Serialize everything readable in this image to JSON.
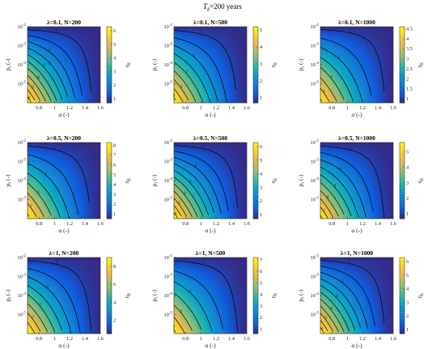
{
  "figure": {
    "title": "T_k=200 years",
    "title_main": "T",
    "title_sub": "k",
    "title_rest": "=200 years"
  },
  "chart_data": [
    {
      "type": "heatmap",
      "title": "λ=0.1, N=200",
      "xlabel": "α (-)",
      "ylabel": "p_f (-)",
      "colorbar_label": "η_E",
      "xlim": [
        0.65,
        1.6
      ],
      "ylim": [
        -6,
        -2
      ],
      "y_scale": "log",
      "xticks": [
        0.8,
        1,
        1.2,
        1.4,
        1.6
      ],
      "yticks": [
        "10^-5",
        "10^-4",
        "10^-3",
        "10^-2"
      ],
      "colorbar_ticks": [
        1,
        2,
        3,
        4,
        5,
        6
      ],
      "clim": [
        0.7,
        6.3
      ],
      "contour_levels": [
        1,
        1.5,
        2,
        2.5,
        3,
        3.5,
        4,
        4.5,
        5,
        5.5,
        6
      ]
    },
    {
      "type": "heatmap",
      "title": "λ=0.1, N=500",
      "xlabel": "α (-)",
      "ylabel": "p_f (-)",
      "colorbar_label": "η_E",
      "xlim": [
        0.65,
        1.6
      ],
      "ylim": [
        -6,
        -2
      ],
      "y_scale": "log",
      "xticks": [
        0.8,
        1,
        1.2,
        1.4,
        1.6
      ],
      "yticks": [
        "10^-5",
        "10^-4",
        "10^-3",
        "10^-2"
      ],
      "colorbar_ticks": [
        1,
        2,
        3,
        4,
        5
      ],
      "clim": [
        0.7,
        5.2
      ],
      "contour_levels": [
        1,
        1.5,
        2,
        2.5,
        3,
        3.5,
        4,
        4.5,
        5
      ]
    },
    {
      "type": "heatmap",
      "title": "λ=0.1, N=1000",
      "xlabel": "α (-)",
      "ylabel": "p_f (-)",
      "colorbar_label": "η_E",
      "xlim": [
        0.65,
        1.6
      ],
      "ylim": [
        -6,
        -2
      ],
      "y_scale": "log",
      "xticks": [
        0.8,
        1,
        1.2,
        1.4,
        1.6
      ],
      "yticks": [
        "10^-5",
        "10^-4",
        "10^-3",
        "10^-2"
      ],
      "colorbar_ticks": [
        1,
        1.5,
        2,
        2.5,
        3,
        3.5,
        4,
        4.5
      ],
      "clim": [
        0.8,
        4.6
      ],
      "contour_levels": [
        1,
        1.5,
        2,
        2.5,
        3,
        3.5,
        4,
        4.5
      ]
    },
    {
      "type": "heatmap",
      "title": "λ=0.5, N=200",
      "xlabel": "α (-)",
      "ylabel": "p_f (-)",
      "colorbar_label": "η_E",
      "xlim": [
        0.65,
        1.6
      ],
      "ylim": [
        -6,
        -2
      ],
      "y_scale": "log",
      "xticks": [
        0.8,
        1,
        1.2,
        1.4,
        1.6
      ],
      "yticks": [
        "10^-5",
        "10^-4",
        "10^-3",
        "10^-2"
      ],
      "colorbar_ticks": [
        1,
        2,
        3,
        4,
        5,
        6,
        7,
        8
      ],
      "clim": [
        0.5,
        8.3
      ],
      "contour_levels": [
        1,
        2,
        3,
        4,
        5,
        6,
        7,
        8
      ]
    },
    {
      "type": "heatmap",
      "title": "λ=0.5, N=500",
      "xlabel": "α (-)",
      "ylabel": "p_f (-)",
      "colorbar_label": "η_E",
      "xlim": [
        0.65,
        1.6
      ],
      "ylim": [
        -6,
        -2
      ],
      "y_scale": "log",
      "xticks": [
        0.8,
        1,
        1.2,
        1.4,
        1.6
      ],
      "yticks": [
        "10^-5",
        "10^-4",
        "10^-3",
        "10^-2"
      ],
      "colorbar_ticks": [
        1,
        2,
        3,
        4,
        5,
        6
      ],
      "clim": [
        0.7,
        6.3
      ],
      "contour_levels": [
        1,
        1.5,
        2,
        2.5,
        3,
        3.5,
        4,
        4.5,
        5,
        5.5,
        6
      ]
    },
    {
      "type": "heatmap",
      "title": "λ=0.5, N=1000",
      "xlabel": "α (-)",
      "ylabel": "p_f (-)",
      "colorbar_label": "η_E",
      "xlim": [
        0.65,
        1.6
      ],
      "ylim": [
        -6,
        -2
      ],
      "y_scale": "log",
      "xticks": [
        0.8,
        1,
        1.2,
        1.4,
        1.6
      ],
      "yticks": [
        "10^-5",
        "10^-4",
        "10^-3",
        "10^-2"
      ],
      "colorbar_ticks": [
        1,
        2,
        3,
        4,
        5
      ],
      "clim": [
        0.7,
        5.6
      ],
      "contour_levels": [
        1,
        1.5,
        2,
        2.5,
        3,
        3.5,
        4,
        4.5,
        5,
        5.5
      ]
    },
    {
      "type": "heatmap",
      "title": "λ=1, N=200",
      "xlabel": "α (-)",
      "ylabel": "p_f (-)",
      "colorbar_label": "η_E",
      "xlim": [
        0.65,
        1.6
      ],
      "ylim": [
        -6,
        -2
      ],
      "y_scale": "log",
      "xticks": [
        0.8,
        1,
        1.2,
        1.4,
        1.6
      ],
      "yticks": [
        "10^-5",
        "10^-4",
        "10^-3",
        "10^-2"
      ],
      "colorbar_ticks": [
        2,
        4,
        6,
        8
      ],
      "clim": [
        0.5,
        9
      ],
      "contour_levels": [
        1,
        2,
        3,
        4,
        5,
        6,
        7,
        8,
        9
      ]
    },
    {
      "type": "heatmap",
      "title": "λ=1, N=500",
      "xlabel": "α (-)",
      "ylabel": "p_f (-)",
      "colorbar_label": "η_E",
      "xlim": [
        0.65,
        1.6
      ],
      "ylim": [
        -6,
        -2
      ],
      "y_scale": "log",
      "xticks": [
        0.8,
        1,
        1.2,
        1.4,
        1.6
      ],
      "yticks": [
        "10^-5",
        "10^-4",
        "10^-3",
        "10^-2"
      ],
      "colorbar_ticks": [
        1,
        2,
        3,
        4,
        5,
        6,
        7
      ],
      "clim": [
        0.6,
        7.2
      ],
      "contour_levels": [
        1,
        2,
        3,
        4,
        5,
        6,
        7
      ]
    },
    {
      "type": "heatmap",
      "title": "λ=1, N=1000",
      "xlabel": "α (-)",
      "ylabel": "p_f (-)",
      "colorbar_label": "η_E",
      "xlim": [
        0.65,
        1.6
      ],
      "ylim": [
        -6,
        -2
      ],
      "y_scale": "log",
      "xticks": [
        0.8,
        1,
        1.2,
        1.4,
        1.6
      ],
      "yticks": [
        "10^-5",
        "10^-4",
        "10^-3",
        "10^-2"
      ],
      "colorbar_ticks": [
        1,
        2,
        3,
        4,
        5,
        6
      ],
      "clim": [
        0.7,
        6.3
      ],
      "contour_levels": [
        1,
        1.5,
        2,
        2.5,
        3,
        3.5,
        4,
        4.5,
        5,
        5.5,
        6
      ]
    }
  ]
}
